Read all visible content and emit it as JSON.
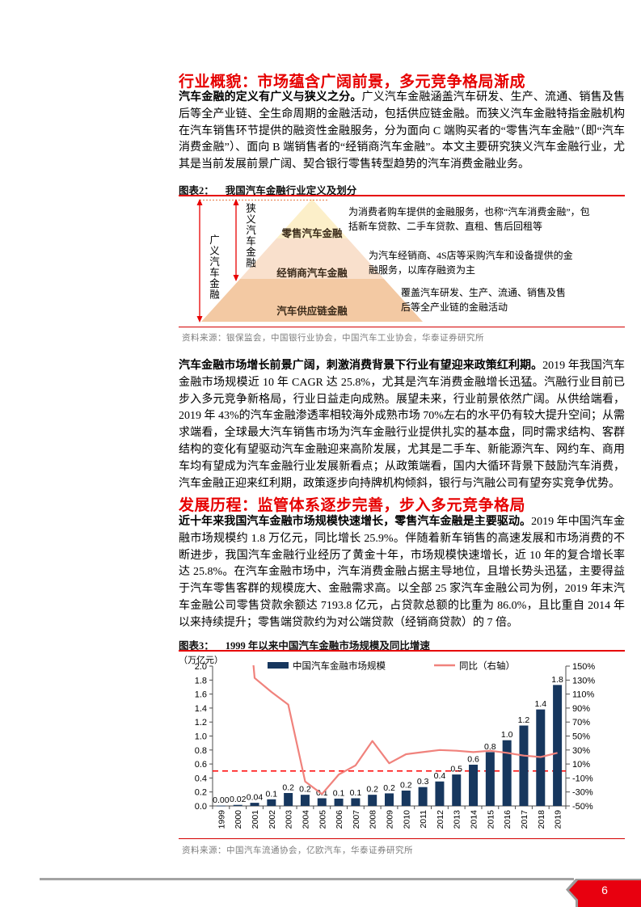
{
  "page": {
    "number": "6"
  },
  "colors": {
    "accent_red": "#e60000",
    "bar_navy": "#17375e",
    "line_salmon": "#f0827c",
    "dashed_red": "#ff0000",
    "pyramid_levels": [
      "#fcefc9",
      "#f9e0cc",
      "#f3c9a3"
    ],
    "ribbon_red": "#e8000f"
  },
  "section1": {
    "title": "行业概貌：市场蕴含广阔前景，多元竞争格局渐成",
    "paragraph_lead": "汽车金融的定义有广义与狭义之分。",
    "paragraph_rest": "广义汽车金融涵盖汽车研发、生产、流通、销售及售后等全产业链、全生命周期的金融活动，包括供应链金融。而狭义汽车金融特指金融机构在汽车销售环节提供的融资性金融服务，分为面向 C 端购买者的“零售汽车金融”（即“汽车消费金融”）、面向 B 端销售者的“经销商汽车金融”。本文主要研究狭义汽车金融行业，尤其是当前发展前景广阔、契合银行零售转型趋势的汽车消费金融业务。"
  },
  "figure2": {
    "caption_label": "图表2：",
    "caption_title": "我国汽车金融行业定义及划分",
    "source": "资料来源：银保监会，中国银行业协会，中国汽车工业协会，华泰证券研究所",
    "broad_label": "广义汽车金融",
    "narrow_label": "狭义汽车金融",
    "levels": [
      {
        "label": "零售汽车金融",
        "desc": "为消费者购车提供的金融服务，也称“汽车消费金融”，包括新车贷款、二手车贷款、直租、售后回租等"
      },
      {
        "label": "经销商汽车金融",
        "desc": "为汽车经销商、4S店等采购汽车和设备提供的金融服务，以库存融资为主"
      },
      {
        "label": "汽车供应链金融",
        "desc": "覆盖汽车研发、生产、流通、销售及售后等全产业链的金融活动"
      }
    ]
  },
  "paragraph2": {
    "lead": "汽车金融市场增长前景广阔，刺激消费背景下行业有望迎来政策红利期。",
    "rest": "2019 年我国汽车金融市场规模近 10 年 CAGR 达 25.8%，尤其是汽车消费金融增长迅猛。汽融行业目前已步入多元竞争新格局，行业日益走向成熟。展望未来，行业前景依然广阔。从供给端看，2019 年 43%的汽车金融渗透率相较海外成熟市场 70%左右的水平仍有较大提升空间；从需求端看，全球最大汽车销售市场为汽车金融行业提供扎实的基本盘，同时需求结构、客群结构的变化有望驱动汽车金融迎来高阶发展，尤其是二手车、新能源汽车、网约车、商用车均有望成为汽车金融行业发展新看点；从政策端看，国内大循环背景下鼓励汽车消费，汽车金融正迎来红利期，政策逐步向持牌机构倾斜，银行与汽融公司有望夯实竞争优势。"
  },
  "section2": {
    "title": "发展历程：监管体系逐步完善，步入多元竞争格局",
    "paragraph_lead": "近十年来我国汽车金融市场规模快速增长，零售汽车金融是主要驱动。",
    "paragraph_rest": "2019 年中国汽车金融市场规模约 1.8 万亿元，同比增长 25.9%。伴随着新车销售的高速发展和市场消费的不断进步，我国汽车金融行业经历了黄金十年，市场规模快速增长，近 10 年的复合增长率达 25.8%。在汽车金融市场中，汽车消费金融占据主导地位，且增长势头迅猛，主要得益于汽车零售客群的规模庞大、金融需求高。以全部 25 家汽车金融公司为例，2019 年末汽车金融公司零售贷款余额达 7193.8 亿元，占贷款总额的比重为 86.0%，且比重自 2014 年以来持续提升；零售端贷款约为对公端贷款（经销商贷款）的 7 倍。"
  },
  "figure3": {
    "caption_label": "图表3：",
    "caption_title": "1999 年以来中国汽车金融市场规模及同比增速",
    "source": "资料来源：中国汽车流通协会，亿欧汽车，华泰证券研究所"
  },
  "chart_data": {
    "type": "bar+line",
    "title": "1999 年以来中国汽车金融市场规模及同比增速",
    "unit_label": "（万亿元）",
    "legend": [
      "中国汽车金融市场规模",
      "同比（右轴）"
    ],
    "categories": [
      "1999",
      "2000",
      "2001",
      "2002",
      "2003",
      "2004",
      "2005",
      "2006",
      "2007",
      "2008",
      "2009",
      "2010",
      "2011",
      "2012",
      "2013",
      "2014",
      "2015",
      "2016",
      "2017",
      "2018",
      "2019"
    ],
    "series": [
      {
        "name": "中国汽车金融市场规模",
        "type": "bar",
        "axis": "left",
        "values": [
          0.0,
          0.02,
          0.04,
          0.1,
          0.2,
          0.2,
          0.1,
          0.1,
          0.1,
          0.2,
          0.2,
          0.2,
          0.3,
          0.4,
          0.5,
          0.6,
          0.8,
          1.0,
          1.2,
          1.4,
          1.8
        ],
        "bar_labels": [
          "0.00",
          "0.02",
          "0.04",
          "0.1",
          "0.2",
          "0.2",
          "0.1",
          "0.1",
          "0.1",
          "0.2",
          "0.2",
          "0.2",
          "0.3",
          "0.4",
          "0.5",
          "0.6",
          "0.8",
          "1.0",
          "1.2",
          "1.4",
          "1.8"
        ],
        "heights_est": [
          0.004,
          0.015,
          0.045,
          0.095,
          0.185,
          0.16,
          0.11,
          0.105,
          0.11,
          0.16,
          0.18,
          0.22,
          0.27,
          0.35,
          0.45,
          0.59,
          0.77,
          0.94,
          1.15,
          1.38,
          1.73
        ]
      },
      {
        "name": "同比（右轴）",
        "type": "line",
        "axis": "right",
        "values_pct": [
          null,
          400,
          133,
          113,
          95,
          -15,
          -33,
          -5,
          8,
          43,
          11,
          24,
          27,
          30,
          29,
          27,
          29,
          26,
          22,
          20,
          26
        ],
        "note": "2000 年同比超出右轴上限，折线在图顶被裁剪"
      }
    ],
    "left_axis": {
      "min": 0.0,
      "max": 2.0,
      "step": 0.2
    },
    "right_axis": {
      "min": -50,
      "max": 150,
      "step": 20,
      "format": "percent"
    },
    "reference_line": {
      "axis": "right",
      "value": 0,
      "style": "dashed"
    },
    "legend_position": "top",
    "grid": false,
    "colors": {
      "bar": "#17375e",
      "line": "#f0827c",
      "dashed": "#ff0000",
      "axis": "#4d4d4d"
    }
  }
}
